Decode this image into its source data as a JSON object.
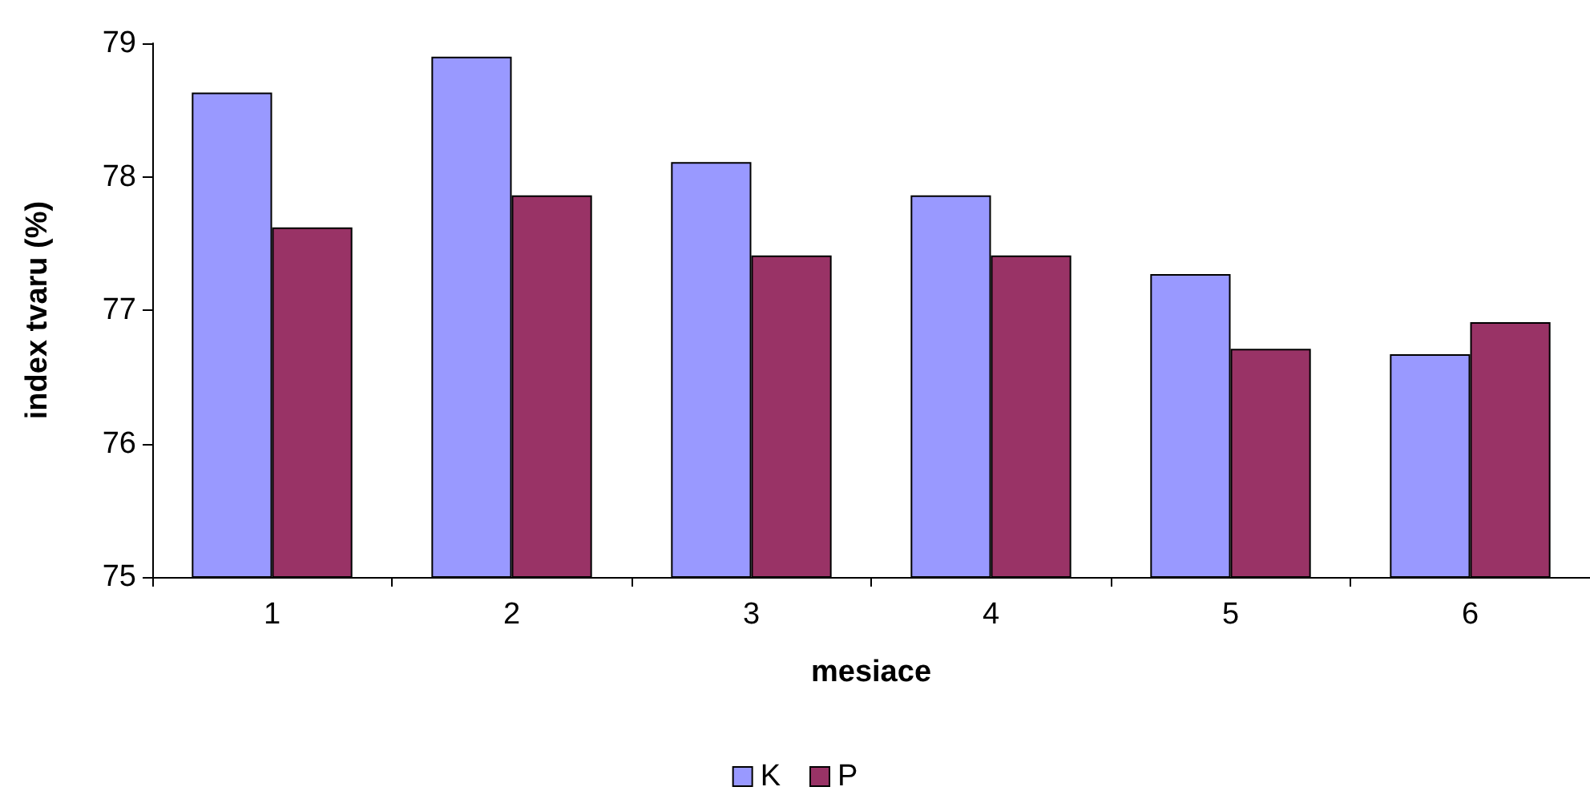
{
  "chart_data": {
    "type": "bar",
    "xlabel": "mesiace",
    "ylabel": "index tvaru (%)",
    "categories": [
      "1",
      "2",
      "3",
      "4",
      "5",
      "6"
    ],
    "series": [
      {
        "name": "K",
        "color": "#9999ff",
        "values": [
          78.63,
          78.9,
          78.11,
          77.86,
          77.27,
          76.67
        ]
      },
      {
        "name": "P",
        "color": "#993366",
        "values": [
          77.62,
          77.86,
          77.41,
          77.41,
          76.71,
          76.91
        ]
      }
    ],
    "ylim": [
      75,
      79
    ],
    "yticks": [
      75,
      76,
      77,
      78,
      79
    ],
    "grid": false,
    "legend": "bottom"
  }
}
